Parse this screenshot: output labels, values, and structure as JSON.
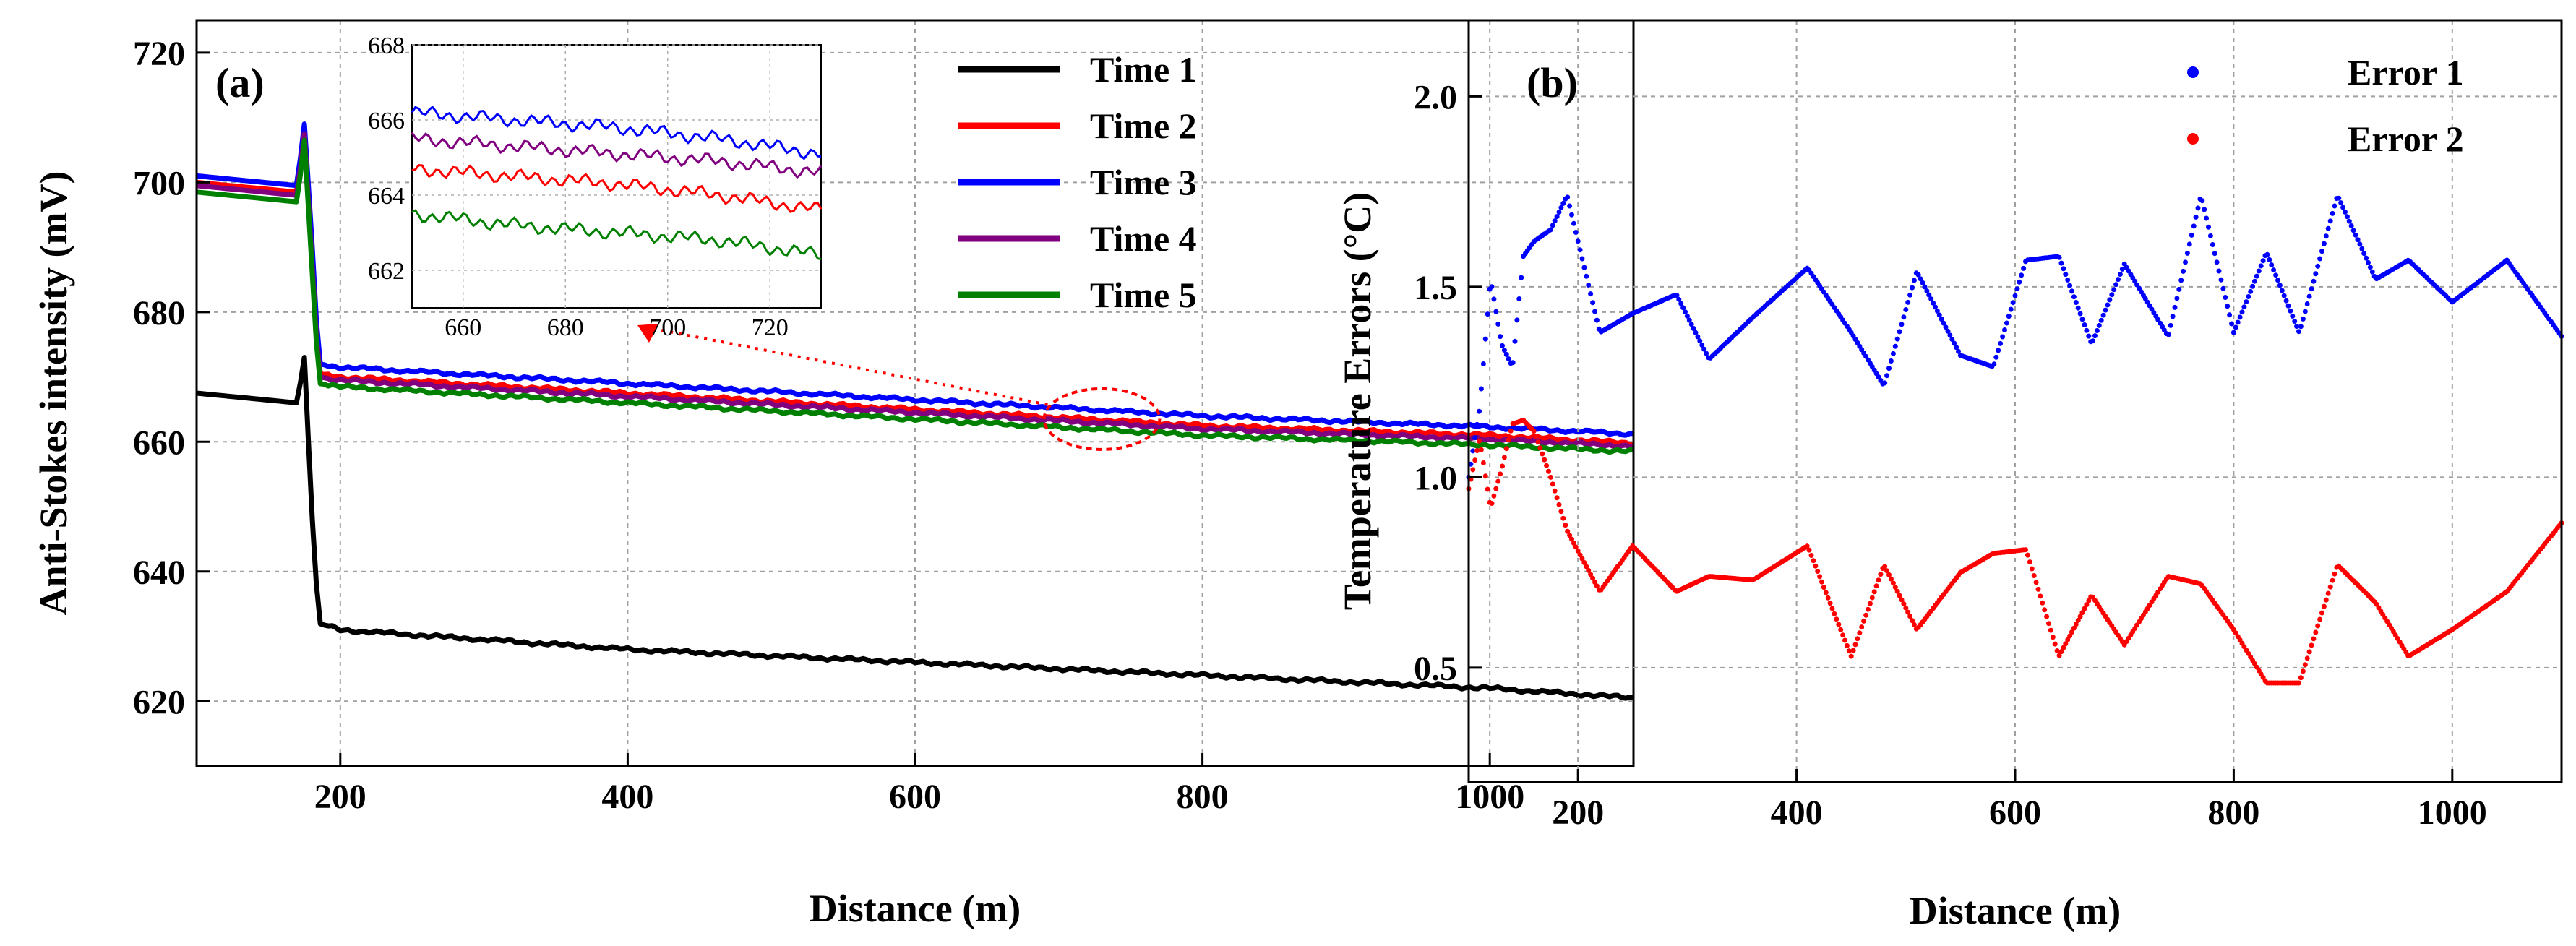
{
  "figure": {
    "panels": [
      "(a)",
      "(b)"
    ]
  },
  "chart_data": [
    {
      "type": "line",
      "panel_label": "(a)",
      "title": "",
      "xlabel": "Distance (m)",
      "ylabel": "Anti-Stokes intensity (mV)",
      "xlim": [
        100,
        1100
      ],
      "ylim": [
        610,
        725
      ],
      "xticks": [
        200,
        400,
        600,
        800,
        1000
      ],
      "yticks": [
        620,
        640,
        660,
        680,
        700,
        720
      ],
      "grid": true,
      "legend": "top-right",
      "x": [
        100,
        170,
        175,
        180,
        185,
        200,
        400,
        600,
        800,
        1000,
        1100
      ],
      "series": [
        {
          "name": "Time 1",
          "color": "#000000",
          "values": [
            667.5,
            666,
            673,
            650,
            632,
            631,
            628,
            626,
            624,
            622,
            620.5
          ]
        },
        {
          "name": "Time 2",
          "color": "#ff0000",
          "values": [
            700,
            698.5,
            708,
            690,
            670.5,
            670,
            667.5,
            665,
            662.5,
            661,
            659.8
          ]
        },
        {
          "name": "Time 3",
          "color": "#0000ff",
          "values": [
            701,
            699.5,
            709,
            692,
            672,
            671.5,
            669,
            666.5,
            664,
            662.3,
            661.2
          ]
        },
        {
          "name": "Time 4",
          "color": "#800080",
          "values": [
            699.5,
            698,
            707.5,
            689,
            670,
            669.5,
            667,
            664.5,
            662,
            660.4,
            659.3
          ]
        },
        {
          "name": "Time 5",
          "color": "#008000",
          "values": [
            698.5,
            697,
            706.5,
            688,
            669,
            668.5,
            666,
            663.5,
            661,
            659.5,
            658.5
          ]
        }
      ],
      "annotation": {
        "type": "ellipse-arrow",
        "target_x": 730,
        "target_y": 663.5
      },
      "inset": {
        "xlim": [
          650,
          730
        ],
        "ylim": [
          661,
          668
        ],
        "xticks": [
          660,
          680,
          700,
          720
        ],
        "yticks": [
          662,
          664,
          666,
          668
        ],
        "x": [
          650,
          670,
          690,
          710,
          730
        ],
        "series": [
          {
            "name": "Time 3",
            "color": "#0000ff",
            "values": [
              666.2,
              666.0,
              665.8,
              665.5,
              665.1
            ]
          },
          {
            "name": "Time 4",
            "color": "#800080",
            "values": [
              665.5,
              665.3,
              665.1,
              664.9,
              664.6
            ]
          },
          {
            "name": "Time 2",
            "color": "#ff0000",
            "values": [
              664.7,
              664.5,
              664.3,
              664.0,
              663.6
            ]
          },
          {
            "name": "Time 5",
            "color": "#008000",
            "values": [
              663.5,
              663.2,
              663.0,
              662.8,
              662.4
            ]
          }
        ]
      }
    },
    {
      "type": "scatter",
      "panel_label": "(b)",
      "title": "",
      "xlabel": "Distance (m)",
      "ylabel": "Temperature Errors (°C)",
      "xlim": [
        100,
        1100
      ],
      "ylim": [
        0.2,
        2.2
      ],
      "xticks": [
        200,
        400,
        600,
        800,
        1000
      ],
      "yticks": [
        0.5,
        1.0,
        1.5,
        2.0
      ],
      "ytick_labels": [
        "0.5",
        "1.0",
        "1.5",
        "2.0"
      ],
      "grid": true,
      "legend": "top-right",
      "x": [
        100,
        110,
        120,
        130,
        140,
        150,
        160,
        175,
        190,
        220,
        250,
        290,
        320,
        360,
        410,
        450,
        480,
        510,
        550,
        580,
        610,
        640,
        670,
        700,
        740,
        770,
        800,
        830,
        860,
        895,
        930,
        960,
        1000,
        1050,
        1100
      ],
      "series": [
        {
          "name": "Error 1",
          "color": "#0000ff",
          "values": [
            1.0,
            1.18,
            1.52,
            1.35,
            1.29,
            1.58,
            1.62,
            1.65,
            1.74,
            1.38,
            1.43,
            1.48,
            1.31,
            1.42,
            1.55,
            1.38,
            1.24,
            1.54,
            1.32,
            1.29,
            1.57,
            1.58,
            1.35,
            1.56,
            1.37,
            1.74,
            1.38,
            1.59,
            1.38,
            1.74,
            1.52,
            1.57,
            1.46,
            1.57,
            1.37
          ]
        },
        {
          "name": "Error 2",
          "color": "#ff0000",
          "values": [
            0.97,
            1.1,
            0.92,
            1.02,
            1.14,
            1.15,
            1.12,
            1.0,
            0.86,
            0.7,
            0.82,
            0.7,
            0.74,
            0.73,
            0.82,
            0.53,
            0.77,
            0.6,
            0.75,
            0.8,
            0.81,
            0.53,
            0.69,
            0.56,
            0.74,
            0.72,
            0.6,
            0.46,
            0.46,
            0.77,
            0.67,
            0.53,
            0.6,
            0.7,
            0.88
          ]
        }
      ]
    }
  ]
}
